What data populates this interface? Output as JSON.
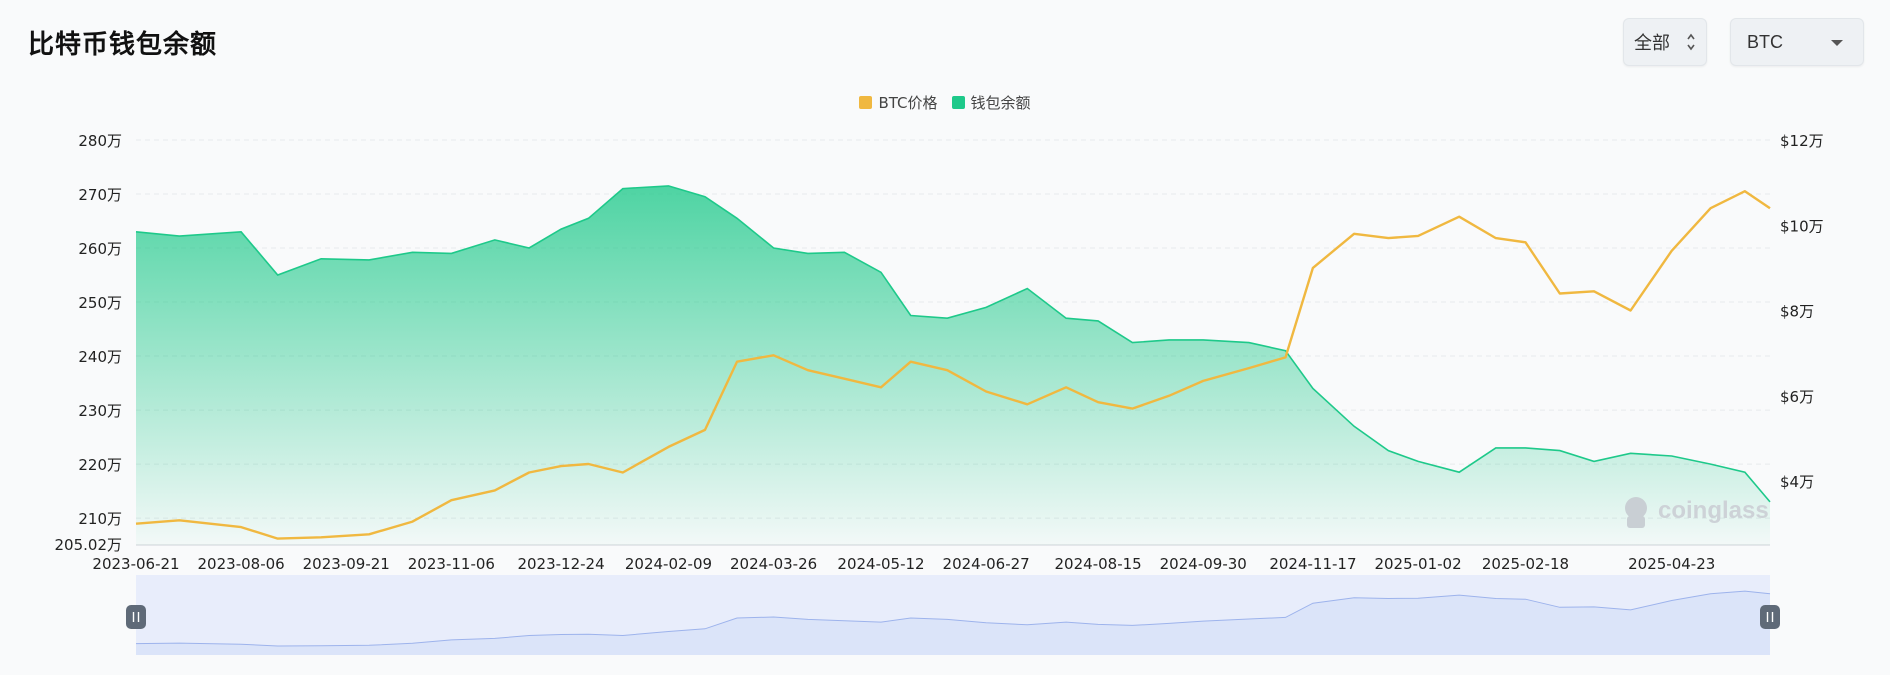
{
  "header": {
    "title": "比特币钱包余额",
    "range_label": "全部",
    "coin_label": "BTC"
  },
  "watermark": "coinglass",
  "colors": {
    "price": "#f0b840",
    "balance": "#1ec98a",
    "zoom_fill": "#dbe4f9",
    "zoom_line": "#9db3ec"
  },
  "chart_data": {
    "type": "line",
    "title": "比特币钱包余额",
    "legend": [
      "BTC价格",
      "钱包余额"
    ],
    "legend_position": "top-center",
    "x_ticks": [
      "2023-06-21",
      "2023-08-06",
      "2023-09-21",
      "2023-11-06",
      "2023-12-24",
      "2024-02-09",
      "2024-03-26",
      "2024-05-12",
      "2024-06-27",
      "2024-08-15",
      "2024-09-30",
      "2024-11-17",
      "2025-01-02",
      "2025-02-18",
      "2025-04-23"
    ],
    "y_left": {
      "min": 2050200,
      "max": 2800000,
      "ticks": [
        2800000,
        2700000,
        2600000,
        2500000,
        2400000,
        2300000,
        2200000,
        2100000
      ],
      "tick_labels": [
        "280万",
        "270万",
        "260万",
        "250万",
        "240万",
        "230万",
        "220万",
        "210万"
      ],
      "min_label": "205.02万"
    },
    "y_right": {
      "min": 25000,
      "max": 120000,
      "ticks": [
        120000,
        100000,
        80000,
        60000,
        40000
      ],
      "tick_labels": [
        "$12万",
        "$10万",
        "$8万",
        "$6万",
        "$4万"
      ]
    },
    "series": [
      {
        "name": "钱包余额",
        "axis": "left",
        "type": "area",
        "x": [
          "2023-06-21",
          "2023-07-10",
          "2023-08-06",
          "2023-08-22",
          "2023-09-10",
          "2023-10-01",
          "2023-10-20",
          "2023-11-06",
          "2023-11-25",
          "2023-12-10",
          "2023-12-24",
          "2024-01-05",
          "2024-01-20",
          "2024-02-09",
          "2024-02-25",
          "2024-03-10",
          "2024-03-26",
          "2024-04-10",
          "2024-04-26",
          "2024-05-12",
          "2024-05-25",
          "2024-06-10",
          "2024-06-27",
          "2024-07-15",
          "2024-08-01",
          "2024-08-15",
          "2024-08-30",
          "2024-09-15",
          "2024-09-30",
          "2024-10-20",
          "2024-11-05",
          "2024-11-17",
          "2024-12-05",
          "2024-12-20",
          "2025-01-02",
          "2025-01-20",
          "2025-02-05",
          "2025-02-18",
          "2025-03-05",
          "2025-03-20",
          "2025-04-05",
          "2025-04-23",
          "2025-05-10",
          "2025-05-25",
          "2025-06-05"
        ],
        "values": [
          2630000,
          2622000,
          2630000,
          2550000,
          2580000,
          2578000,
          2592000,
          2590000,
          2615000,
          2600000,
          2635000,
          2655000,
          2710000,
          2715000,
          2695000,
          2655000,
          2600000,
          2590000,
          2592000,
          2555000,
          2475000,
          2470000,
          2490000,
          2525000,
          2470000,
          2465000,
          2425000,
          2430000,
          2430000,
          2425000,
          2410000,
          2340000,
          2270000,
          2225000,
          2205000,
          2185000,
          2230000,
          2230000,
          2225000,
          2205000,
          2220000,
          2215000,
          2200000,
          2185000,
          2130000
        ]
      },
      {
        "name": "BTC价格",
        "axis": "right",
        "type": "line",
        "x": [
          "2023-06-21",
          "2023-07-10",
          "2023-08-06",
          "2023-08-22",
          "2023-09-10",
          "2023-10-01",
          "2023-10-20",
          "2023-11-06",
          "2023-11-25",
          "2023-12-10",
          "2023-12-24",
          "2024-01-05",
          "2024-01-20",
          "2024-02-09",
          "2024-02-25",
          "2024-03-10",
          "2024-03-26",
          "2024-04-10",
          "2024-04-26",
          "2024-05-12",
          "2024-05-25",
          "2024-06-10",
          "2024-06-27",
          "2024-07-15",
          "2024-08-01",
          "2024-08-15",
          "2024-08-30",
          "2024-09-15",
          "2024-09-30",
          "2024-10-20",
          "2024-11-05",
          "2024-11-17",
          "2024-12-05",
          "2024-12-20",
          "2025-01-02",
          "2025-01-20",
          "2025-02-05",
          "2025-02-18",
          "2025-03-05",
          "2025-03-20",
          "2025-04-05",
          "2025-04-23",
          "2025-05-10",
          "2025-05-25",
          "2025-06-05"
        ],
        "values": [
          30000,
          30800,
          29200,
          26500,
          26800,
          27500,
          30500,
          35500,
          37800,
          42000,
          43500,
          44000,
          42000,
          48000,
          52000,
          68000,
          69500,
          66000,
          64000,
          62000,
          68000,
          66000,
          61000,
          58000,
          62000,
          58500,
          57000,
          60000,
          63500,
          66500,
          69000,
          90000,
          98000,
          97000,
          97500,
          102000,
          97000,
          96000,
          84000,
          84500,
          80000,
          94000,
          104000,
          108000,
          104000
        ]
      }
    ],
    "zoom": {
      "handles": [
        "left-handle",
        "right-handle"
      ],
      "preview_series": "BTC价格"
    }
  }
}
